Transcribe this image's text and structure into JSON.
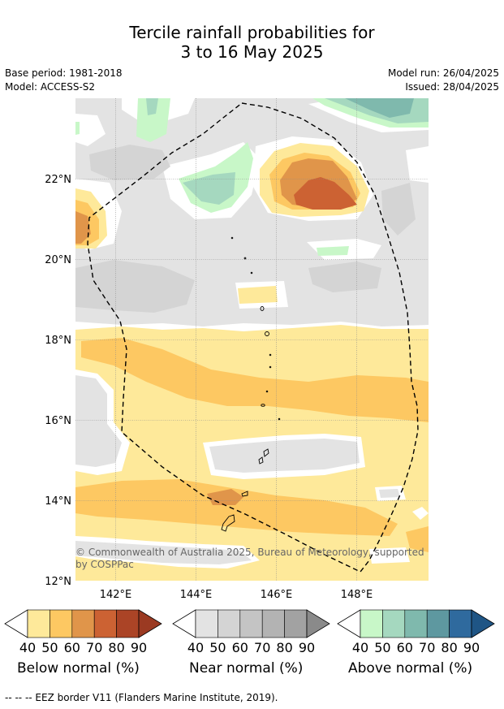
{
  "title": {
    "line1": "Tercile rainfall probabilities for",
    "line2": "3 to 16 May 2025"
  },
  "meta": {
    "base_period": "Base period: 1981-2018",
    "model": "Model: ACCESS-S2",
    "model_run": "Model run: 26/04/2025",
    "issued": "Issued: 28/04/2025"
  },
  "map": {
    "lat_labels": [
      "22°N",
      "20°N",
      "18°N",
      "16°N",
      "14°N",
      "12°N"
    ],
    "lon_labels": [
      "142°E",
      "144°E",
      "146°E",
      "148°E"
    ],
    "copyright_line1": "© Commonwealth of Australia 2025, Bureau of Meteorology, supported",
    "copyright_line2": "by COSPPac"
  },
  "colorbars": [
    {
      "id": "below",
      "label": "Below normal (%)",
      "ticks": [
        "40",
        "50",
        "60",
        "70",
        "80",
        "90"
      ],
      "colors": [
        "#fee99a",
        "#fdc862",
        "#e0954a",
        "#cc6233",
        "#ab4426",
        "#9b3a22"
      ]
    },
    {
      "id": "near",
      "label": "Near normal (%)",
      "ticks": [
        "40",
        "50",
        "60",
        "70",
        "80",
        "90"
      ],
      "colors": [
        "#e3e3e3",
        "#d4d4d4",
        "#c4c4c4",
        "#b3b3b3",
        "#a2a2a2",
        "#8a8a8a"
      ]
    },
    {
      "id": "above",
      "label": "Above normal (%)",
      "ticks": [
        "40",
        "50",
        "60",
        "70",
        "80",
        "90"
      ],
      "colors": [
        "#c8f7c8",
        "#a5d8bf",
        "#7fb9ad",
        "#5e98a0",
        "#2f6a9e",
        "#1f5585"
      ]
    }
  ],
  "footnote": "-- -- -- EEZ border V11 (Flanders Marine Institute, 2019)."
}
